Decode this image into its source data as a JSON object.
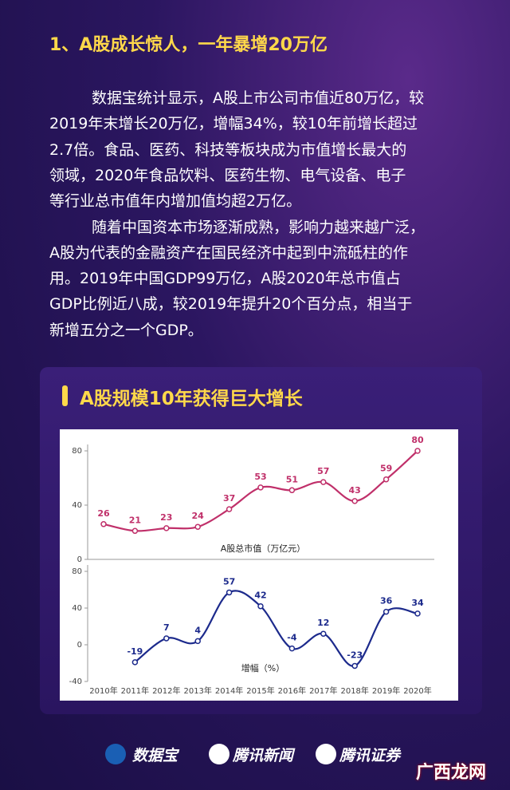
{
  "header": {
    "title": "1、A股成长惊人，一年暴增20万亿"
  },
  "paragraphs": [
    [
      "数据宝统计显示，A股上市公司市值近80万亿，较",
      "2019年末增长20万亿，增幅34%，较10年前增长超过",
      "2.7倍。食品、医药、科技等板块成为市值增长最大的",
      "领域，2020年食品饮料、医药生物、电气设备、电子",
      "等行业总市值年内增加值均超2万亿。"
    ],
    [
      "随着中国资本市场逐渐成熟，影响力越来越广泛，",
      "A股为代表的金融资产在国民经济中起到中流砥柱的作",
      "用。2019年中国GDP99万亿，A股2020年总市值占",
      "GDP比例近八成，较2019年提升20个百分点，相当于",
      "新增五分之一个GDP。"
    ]
  ],
  "panel": {
    "title": "A股规模10年获得巨大增长"
  },
  "chart_data": [
    {
      "type": "line",
      "axis_label": "A股总市值（万亿元）",
      "color": "#c0306a",
      "values": [
        26,
        21,
        23,
        24,
        37,
        53,
        51,
        57,
        43,
        59,
        80
      ],
      "ylim": [
        0,
        80
      ],
      "yticks": [
        0,
        40,
        80
      ]
    },
    {
      "type": "line",
      "axis_label": "增幅（%）",
      "color": "#1c2a8c",
      "categories": [
        "2010年",
        "2011年",
        "2012年",
        "2013年",
        "2014年",
        "2015年",
        "2016年",
        "2017年",
        "2018年",
        "2019年",
        "2020年"
      ],
      "values": [
        null,
        -19,
        7,
        4,
        57,
        42,
        -4,
        12,
        -23,
        36,
        34
      ],
      "ylim": [
        -40,
        80
      ],
      "yticks": [
        -40,
        0,
        40,
        80
      ]
    }
  ],
  "footer": {
    "logos": [
      "数据宝",
      "腾讯新闻",
      "腾讯证券"
    ],
    "watermark": "广西龙网"
  }
}
